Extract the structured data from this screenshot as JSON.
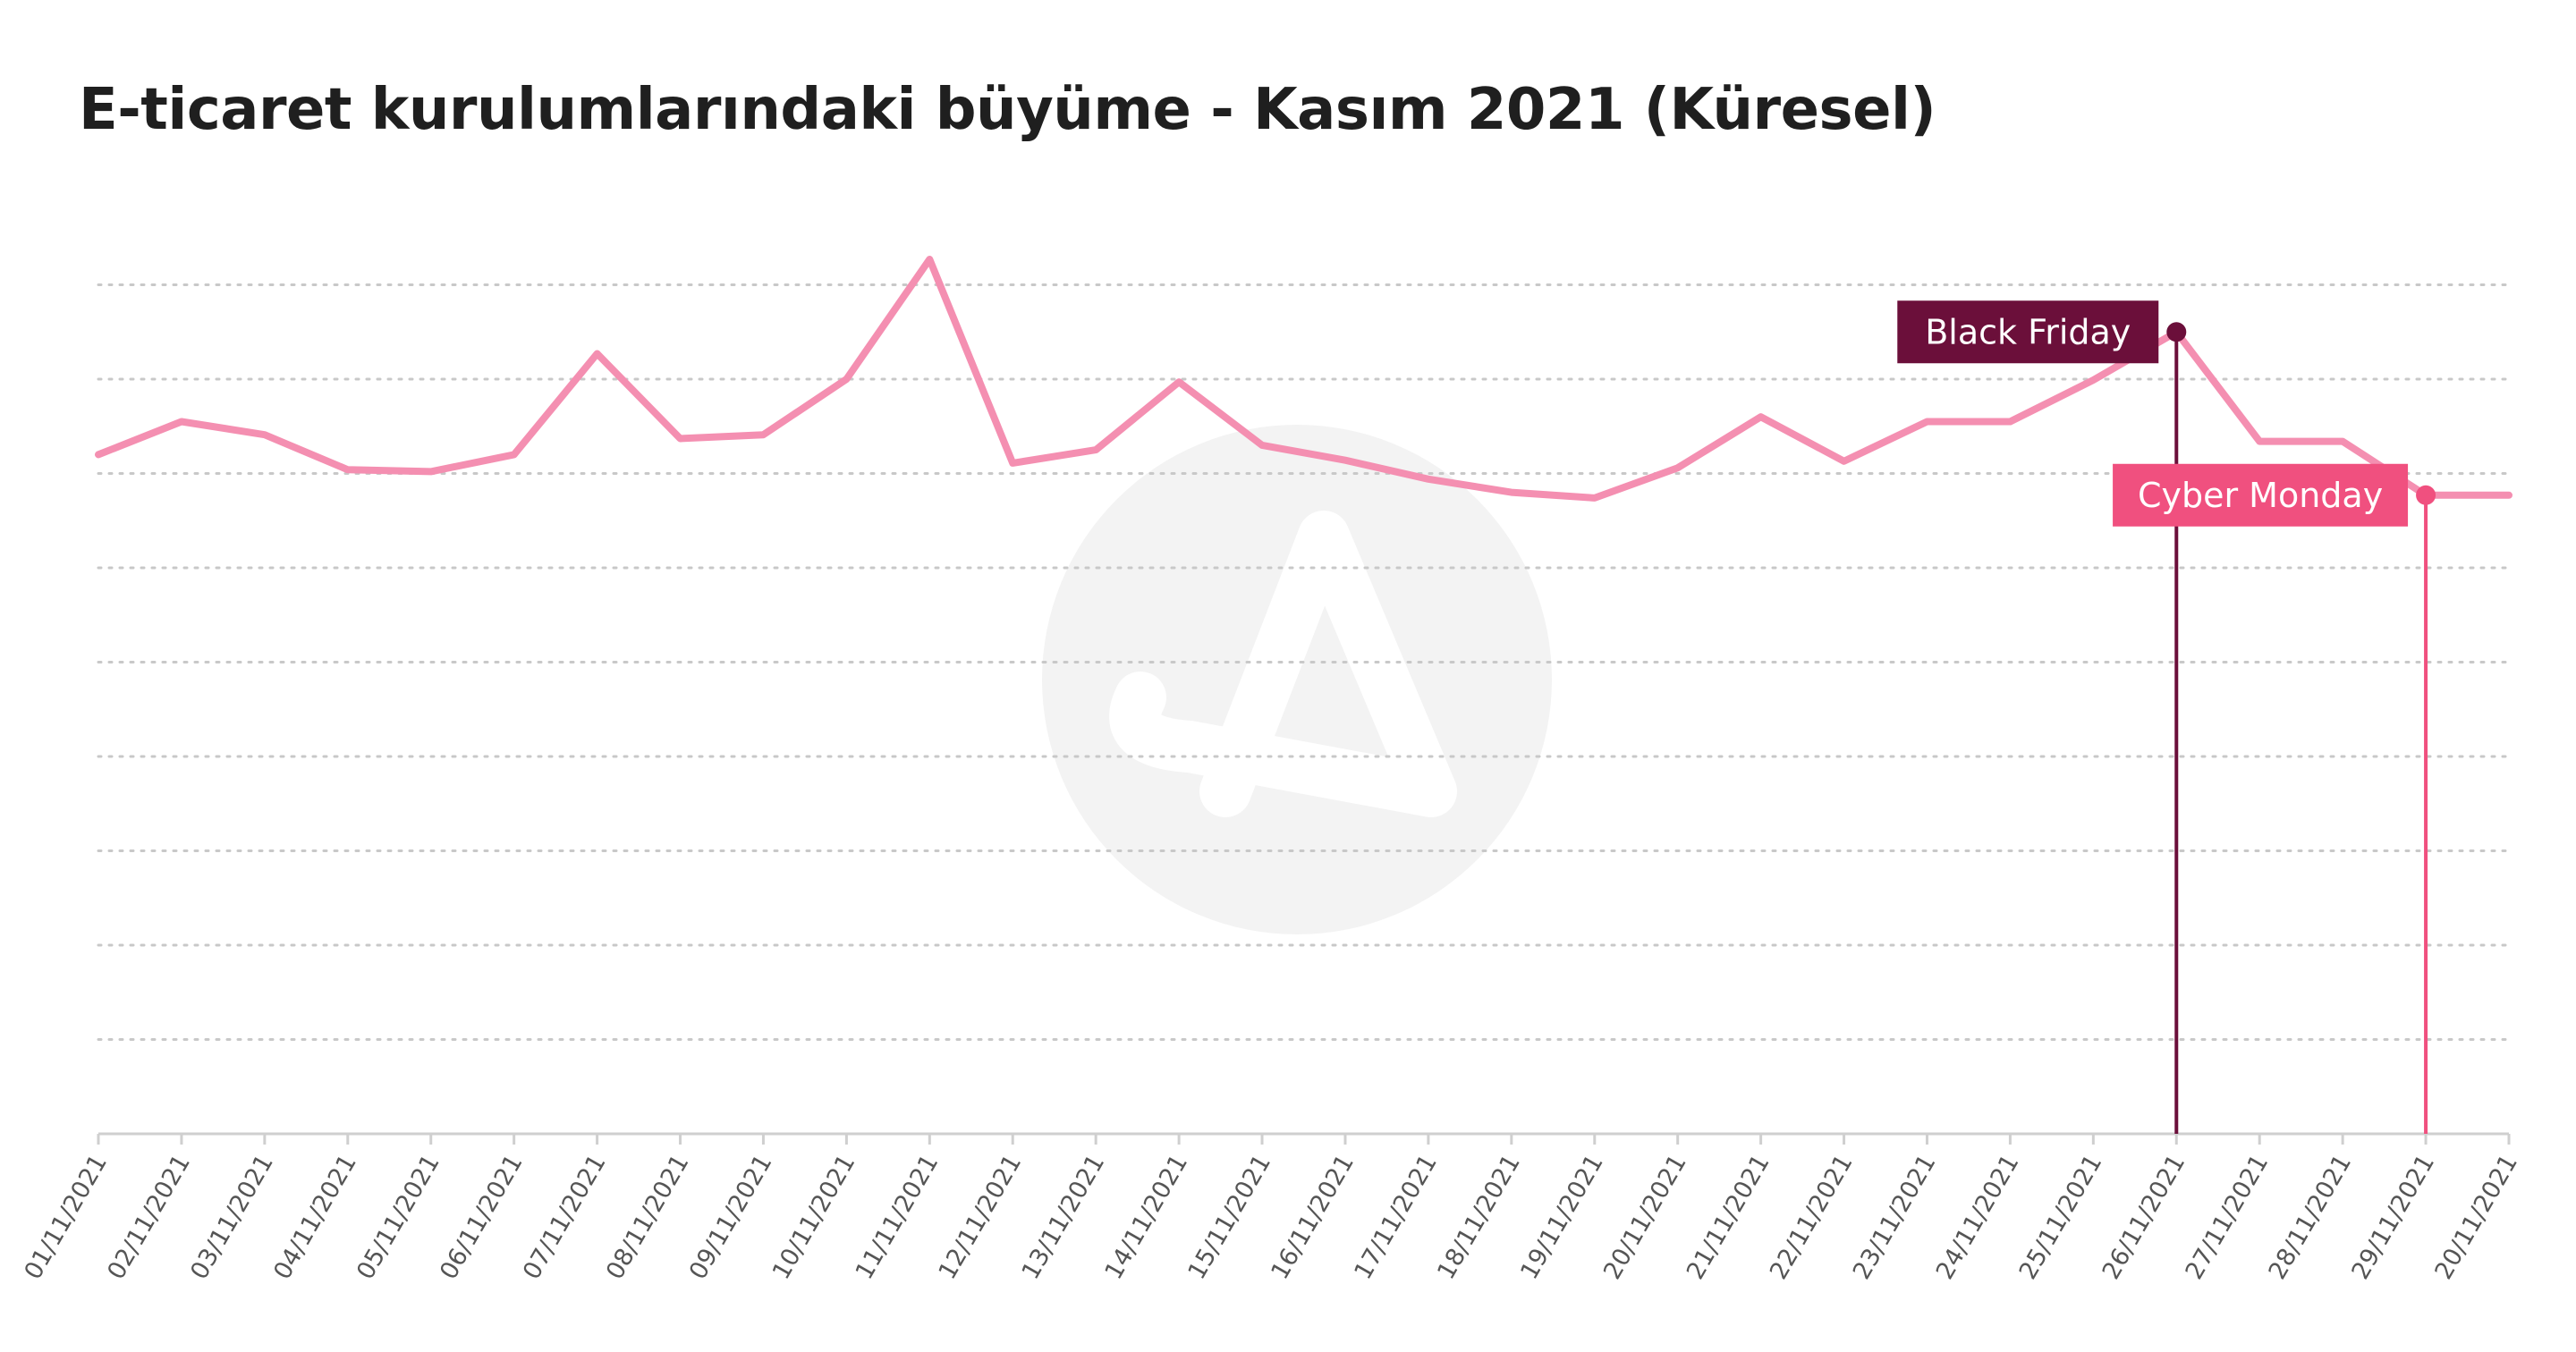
{
  "colors": {
    "line": "#f48fb1",
    "grid": "#c8c8c8",
    "black_friday": "#6b0f3a",
    "cyber_monday": "#f0507f",
    "watermark": "#f3f3f3"
  },
  "watermark_icon": "adjust-logo-icon",
  "chart_data": {
    "type": "line",
    "title": "E-ticaret kurulumlarındaki büyüme - Kasım 2021 (Küresel)",
    "xlabel": "",
    "ylabel": "",
    "ylim": [
      0,
      10
    ],
    "grid": true,
    "categories": [
      "01/11/2021",
      "02/11/2021",
      "03/11/2021",
      "04/11/2021",
      "05/11/2021",
      "06/11/2021",
      "07/11/2021",
      "08/11/2021",
      "09/11/2021",
      "10/11/2021",
      "11/11/2021",
      "12/11/2021",
      "13/11/2021",
      "14/11/2021",
      "15/11/2021",
      "16/11/2021",
      "17/11/2021",
      "18/11/2021",
      "19/11/2021",
      "20/11/2021",
      "21/11/2021",
      "22/11/2021",
      "23/11/2021",
      "24/11/2021",
      "25/11/2021",
      "26/11/2021",
      "27/11/2021",
      "28/11/2021",
      "29/11/2021",
      "20/11/2021"
    ],
    "values": [
      7.2,
      7.55,
      7.41,
      7.04,
      7.02,
      7.2,
      8.27,
      7.37,
      7.41,
      8.0,
      9.27,
      7.11,
      7.25,
      7.97,
      7.3,
      7.14,
      6.94,
      6.8,
      6.74,
      7.06,
      7.6,
      7.13,
      7.55,
      7.55,
      7.99,
      8.5,
      7.34,
      7.34,
      6.77,
      6.77
    ],
    "annotations": [
      {
        "label": "Black Friday",
        "index": 25,
        "y": 8.5
      },
      {
        "label": "Cyber Monday",
        "index": 28,
        "y": 6.77
      }
    ]
  }
}
